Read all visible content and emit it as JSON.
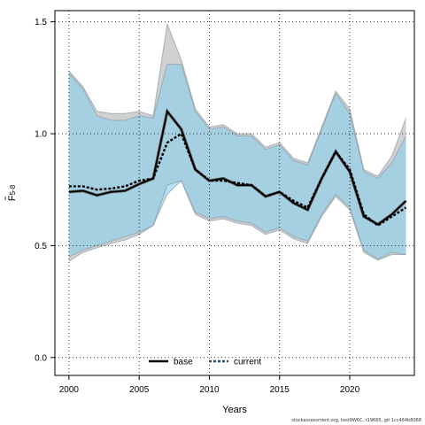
{
  "chart_data": {
    "type": "line",
    "xlabel": "Years",
    "ylabel": "F",
    "ylabel_subscript": "5-8",
    "xlim": [
      1999.0,
      2024.6
    ],
    "ylim": [
      -0.08,
      1.55
    ],
    "xticks": [
      2000,
      2005,
      2010,
      2015,
      2020
    ],
    "yticks": [
      0.0,
      0.5,
      1.0,
      1.5
    ],
    "ytick_labels": [
      "0.0",
      "0.5",
      "1.0",
      "1.5"
    ],
    "grid": true,
    "legend_position": "bottom-center",
    "x": [
      2000,
      2001,
      2002,
      2003,
      2004,
      2005,
      2006,
      2007,
      2008,
      2009,
      2010,
      2011,
      2012,
      2013,
      2014,
      2015,
      2016,
      2017,
      2018,
      2019,
      2020,
      2021,
      2022,
      2023,
      2024
    ],
    "series": [
      {
        "name": "base",
        "color": "#000000",
        "style": "solid",
        "values": [
          0.74,
          0.745,
          0.725,
          0.74,
          0.745,
          0.775,
          0.8,
          1.1,
          1.02,
          0.84,
          0.79,
          0.8,
          0.77,
          0.77,
          0.72,
          0.74,
          0.69,
          0.66,
          0.8,
          0.92,
          0.83,
          0.63,
          0.595,
          0.64,
          0.7
        ],
        "lower": [
          0.43,
          0.47,
          0.49,
          0.51,
          0.525,
          0.55,
          0.59,
          0.77,
          0.79,
          0.64,
          0.61,
          0.62,
          0.6,
          0.59,
          0.55,
          0.57,
          0.53,
          0.51,
          0.63,
          0.72,
          0.66,
          0.47,
          0.435,
          0.46,
          0.46
        ],
        "upper": [
          1.28,
          1.21,
          1.1,
          1.09,
          1.09,
          1.1,
          1.08,
          1.49,
          1.33,
          1.11,
          1.03,
          1.04,
          1.0,
          1.0,
          0.94,
          0.96,
          0.89,
          0.87,
          1.03,
          1.19,
          1.11,
          0.84,
          0.81,
          0.9,
          1.07
        ],
        "band_color": "#b3b3b3"
      },
      {
        "name": "current",
        "color": "#1f4e79",
        "style": "dashed",
        "values": [
          0.765,
          0.765,
          0.75,
          0.755,
          0.765,
          0.79,
          0.8,
          0.96,
          1.0,
          0.84,
          0.79,
          0.79,
          0.78,
          0.77,
          0.72,
          0.74,
          0.7,
          0.67,
          0.8,
          0.92,
          0.84,
          0.64,
          0.59,
          0.63,
          0.67
        ],
        "lower": [
          0.45,
          0.48,
          0.5,
          0.52,
          0.54,
          0.56,
          0.59,
          0.73,
          0.79,
          0.65,
          0.62,
          0.63,
          0.61,
          0.6,
          0.56,
          0.58,
          0.54,
          0.52,
          0.64,
          0.73,
          0.67,
          0.48,
          0.44,
          0.47,
          0.46
        ],
        "upper": [
          1.27,
          1.2,
          1.08,
          1.06,
          1.06,
          1.08,
          1.07,
          1.31,
          1.31,
          1.1,
          1.02,
          1.03,
          0.99,
          0.99,
          0.93,
          0.95,
          0.88,
          0.86,
          1.02,
          1.18,
          1.09,
          0.83,
          0.8,
          0.87,
          0.99
        ],
        "band_color": "#87ceeb"
      }
    ]
  },
  "footer_text": "stockassessment.org, test9W6C, r19665, git 1cc464b8068"
}
